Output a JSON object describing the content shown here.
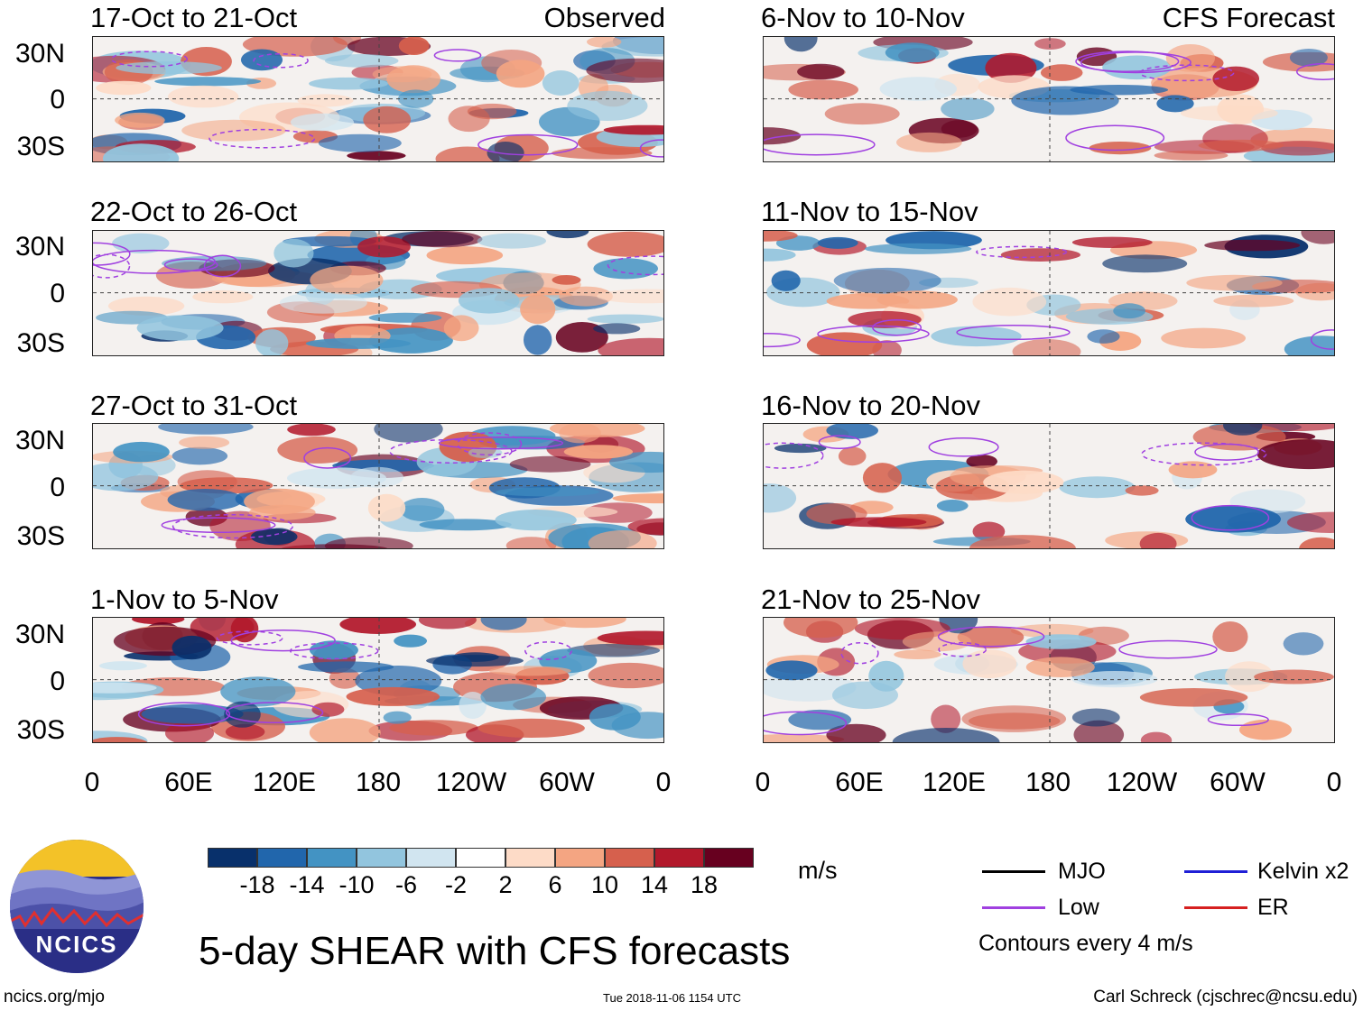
{
  "figure": {
    "title": "5-day SHEAR with CFS forecasts",
    "website": "ncics.org/mjo",
    "timestamp": "Tue 2018-11-06 1154 UTC",
    "credit": "Carl Schreck (cjschrec@ncsu.edu)",
    "logo_text": "NCICS"
  },
  "left_tag": "Observed",
  "right_tag": "CFS Forecast",
  "panels_left": [
    {
      "title": "17-Oct to 21-Oct"
    },
    {
      "title": "22-Oct to 26-Oct"
    },
    {
      "title": "27-Oct to 31-Oct"
    },
    {
      "title": "1-Nov to 5-Nov"
    }
  ],
  "panels_right": [
    {
      "title": "6-Nov to 10-Nov"
    },
    {
      "title": "11-Nov to 15-Nov"
    },
    {
      "title": "16-Nov to 20-Nov"
    },
    {
      "title": "21-Nov to 25-Nov"
    }
  ],
  "chart_data": {
    "type": "heatmap",
    "title": "5-day SHEAR with CFS forecasts",
    "units": "m/s",
    "y_ticks": [
      "30N",
      "0",
      "30S"
    ],
    "x_ticks": [
      "0",
      "60E",
      "120E",
      "180",
      "120W",
      "60W",
      "0"
    ],
    "colorbar": {
      "ticks": [
        "-18",
        "-14",
        "-10",
        "-6",
        "-2",
        "2",
        "6",
        "10",
        "14",
        "18"
      ],
      "colors": [
        "#08306b",
        "#2166ac",
        "#4393c3",
        "#92c5de",
        "#d1e5f0",
        "#ffffff",
        "#fddbc7",
        "#f4a582",
        "#d6604d",
        "#b2182b",
        "#67001f"
      ]
    },
    "contour_note": "Contours every 4 m/s",
    "legend": [
      {
        "name": "MJO",
        "color": "#000000"
      },
      {
        "name": "Kelvin x2",
        "color": "#1f1fd6"
      },
      {
        "name": "Low",
        "color": "#a040e0"
      },
      {
        "name": "ER",
        "color": "#d62020"
      }
    ]
  }
}
